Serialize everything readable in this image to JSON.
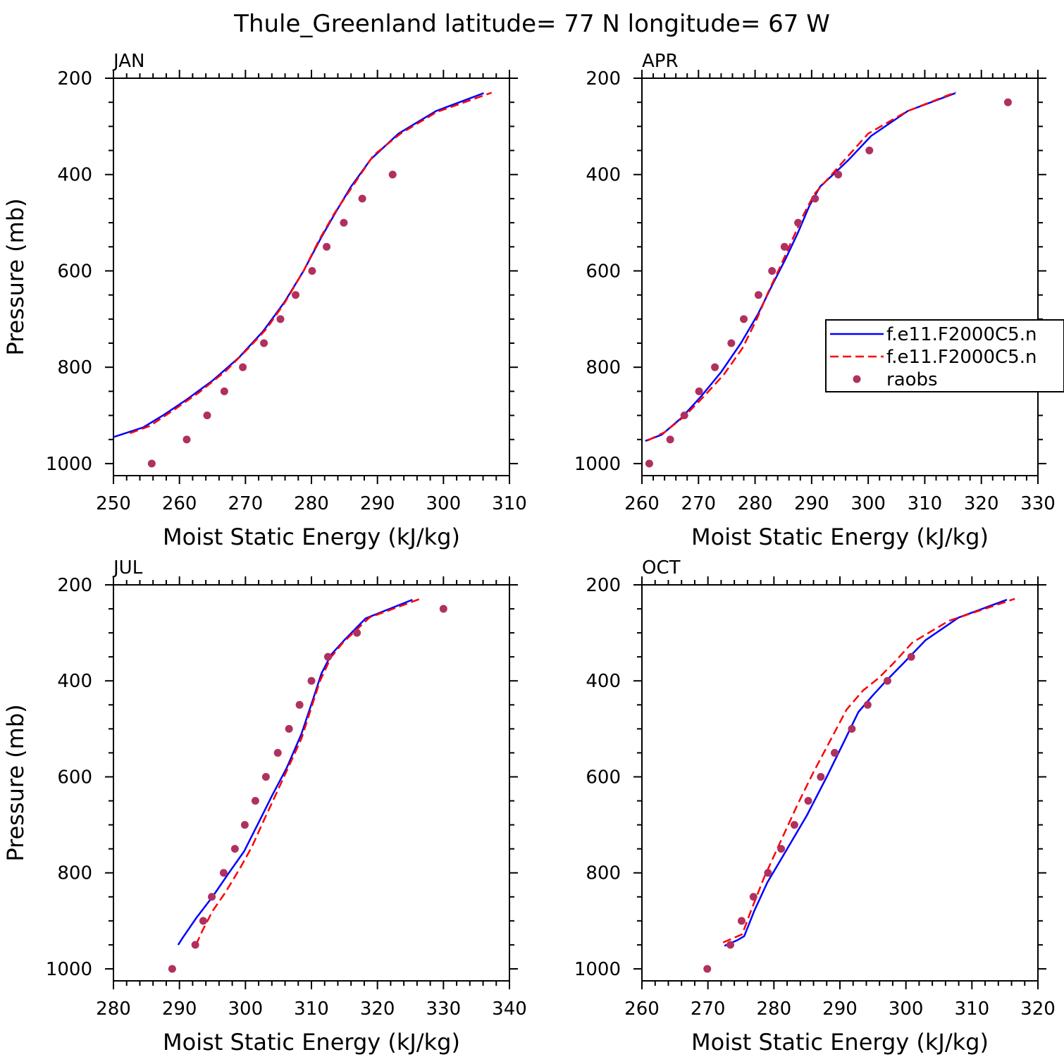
{
  "figure": {
    "title": "Thule_Greenland  latitude= 77 N longitude= 67 W"
  },
  "legend": {
    "panel": 1,
    "entries": [
      {
        "label": "f.e11.F2000C5.n",
        "style": "solid",
        "color": "#0000ff"
      },
      {
        "label": "f.e11.F2000C5.n",
        "style": "dashed",
        "color": "#ff0000"
      },
      {
        "label": "raobs",
        "style": "marker",
        "color": "#b03060"
      }
    ]
  },
  "colors": {
    "model1": "#0000ff",
    "model2": "#ff0000",
    "raobs": "#b03060"
  },
  "chart_data": [
    {
      "type": "line",
      "title": "JAN",
      "xlabel": "Moist Static Energy (kJ/kg)",
      "ylabel": "Pressure (mb)",
      "xlim": [
        250,
        310
      ],
      "ylim": [
        200,
        1025
      ],
      "y_inverted": true,
      "xticks": [
        250,
        260,
        270,
        280,
        290,
        300,
        310
      ],
      "yticks": [
        200,
        400,
        600,
        800,
        1000
      ],
      "series": [
        {
          "name": "f.e11.F2000C5.n",
          "style": "solid",
          "color": "#0000ff",
          "x": [
            250.0,
            254.5,
            257.5,
            261.0,
            265.0,
            269.0,
            272.7,
            275.9,
            278.8,
            281.5,
            283.6,
            286.0,
            289.0,
            293.2,
            298.9,
            306.1
          ],
          "y": [
            945,
            925,
            900,
            868,
            828,
            780,
            725,
            665,
            600,
            530,
            480,
            425,
            368,
            315,
            268,
            231
          ]
        },
        {
          "name": "f.e11.F2000C5.n",
          "style": "dashed",
          "color": "#ff0000",
          "x": [
            252.5,
            255.5,
            259.0,
            263.0,
            267.0,
            270.5,
            273.2,
            276.0,
            278.8,
            281.2,
            283.5,
            286.2,
            289.4,
            293.5,
            299.0,
            307.3
          ],
          "y": [
            937,
            922,
            890,
            852,
            808,
            760,
            720,
            665,
            600,
            535,
            480,
            425,
            360,
            315,
            270,
            230
          ]
        },
        {
          "name": "raobs",
          "style": "marker",
          "color": "#b03060",
          "x": [
            255.8,
            261.1,
            264.2,
            266.8,
            269.6,
            272.8,
            275.3,
            277.6,
            280.1,
            282.3,
            284.9,
            287.7,
            292.3
          ],
          "y": [
            1000,
            950,
            900,
            850,
            800,
            750,
            700,
            650,
            600,
            550,
            500,
            450,
            400
          ]
        }
      ]
    },
    {
      "type": "line",
      "title": "APR",
      "xlabel": "Moist Static Energy (kJ/kg)",
      "ylabel": "",
      "xlim": [
        260,
        330
      ],
      "ylim": [
        200,
        1025
      ],
      "y_inverted": true,
      "xticks": [
        260,
        270,
        280,
        290,
        300,
        310,
        320,
        330
      ],
      "yticks": [
        200,
        400,
        600,
        800,
        1000
      ],
      "series": [
        {
          "name": "f.e11.F2000C5.n",
          "style": "solid",
          "color": "#0000ff",
          "x": [
            260.6,
            263.5,
            267.0,
            270.5,
            274.0,
            277.5,
            280.5,
            283.0,
            285.4,
            287.6,
            289.6,
            291.5,
            293.8,
            296.5,
            300.5,
            307.0,
            315.4
          ],
          "y": [
            953,
            940,
            905,
            860,
            810,
            750,
            690,
            630,
            575,
            520,
            465,
            425,
            400,
            370,
            320,
            268,
            231
          ]
        },
        {
          "name": "f.e11.F2000C5.n",
          "style": "dashed",
          "color": "#ff0000",
          "x": [
            261.0,
            264.0,
            267.5,
            271.0,
            274.5,
            277.8,
            280.3,
            282.3,
            284.3,
            286.4,
            288.5,
            290.5,
            292.8,
            295.8,
            300.0,
            307.0,
            315.5
          ],
          "y": [
            952,
            935,
            902,
            860,
            815,
            760,
            700,
            645,
            595,
            540,
            485,
            440,
            410,
            370,
            315,
            268,
            229
          ]
        },
        {
          "name": "raobs",
          "style": "marker",
          "color": "#b03060",
          "x": [
            261.3,
            265.0,
            267.5,
            270.1,
            272.9,
            275.8,
            278.0,
            280.6,
            283.0,
            285.2,
            287.6,
            290.6,
            294.7,
            300.2,
            324.7
          ],
          "y": [
            1000,
            950,
            900,
            850,
            800,
            750,
            700,
            650,
            600,
            550,
            500,
            450,
            400,
            350,
            250
          ]
        }
      ]
    },
    {
      "type": "line",
      "title": "JUL",
      "xlabel": "Moist Static Energy (kJ/kg)",
      "ylabel": "Pressure (mb)",
      "xlim": [
        280,
        340
      ],
      "ylim": [
        200,
        1025
      ],
      "y_inverted": true,
      "xticks": [
        280,
        290,
        300,
        310,
        320,
        330,
        340
      ],
      "yticks": [
        200,
        400,
        600,
        800,
        1000
      ],
      "series": [
        {
          "name": "f.e11.F2000C5.n",
          "style": "solid",
          "color": "#0000ff",
          "x": [
            289.8,
            290.5,
            292.5,
            295.0,
            297.5,
            299.8,
            302.0,
            304.0,
            306.3,
            308.5,
            310.2,
            311.5,
            313.0,
            315.0,
            318.2,
            325.3
          ],
          "y": [
            950,
            935,
            895,
            850,
            800,
            755,
            695,
            640,
            580,
            510,
            440,
            385,
            345,
            315,
            270,
            231
          ]
        },
        {
          "name": "f.e11.F2000C5.n",
          "style": "dashed",
          "color": "#ff0000",
          "x": [
            292.5,
            293.5,
            295.0,
            297.0,
            299.2,
            301.0,
            302.8,
            304.5,
            306.5,
            308.5,
            310.0,
            311.3,
            313.0,
            314.8,
            318.8,
            326.5
          ],
          "y": [
            950,
            920,
            880,
            840,
            790,
            745,
            690,
            640,
            580,
            520,
            455,
            400,
            350,
            320,
            268,
            229
          ]
        },
        {
          "name": "raobs",
          "style": "marker",
          "color": "#b03060",
          "x": [
            288.9,
            292.4,
            293.6,
            294.9,
            296.7,
            298.4,
            299.9,
            301.5,
            303.1,
            304.9,
            306.6,
            308.2,
            310.0,
            312.5,
            316.9,
            330.0
          ],
          "y": [
            1000,
            950,
            900,
            850,
            800,
            750,
            700,
            650,
            600,
            550,
            500,
            450,
            400,
            350,
            300,
            250
          ]
        }
      ]
    },
    {
      "type": "line",
      "title": "OCT",
      "xlabel": "Moist Static Energy (kJ/kg)",
      "ylabel": "",
      "xlim": [
        260,
        320
      ],
      "ylim": [
        200,
        1025
      ],
      "y_inverted": true,
      "xticks": [
        260,
        270,
        280,
        290,
        300,
        310,
        320
      ],
      "yticks": [
        200,
        400,
        600,
        800,
        1000
      ],
      "series": [
        {
          "name": "f.e11.F2000C5.n",
          "style": "solid",
          "color": "#0000ff",
          "x": [
            272.5,
            274.5,
            275.5,
            277.0,
            279.0,
            282.0,
            285.0,
            288.0,
            290.5,
            292.8,
            295.0,
            297.0,
            299.5,
            303.0,
            308.0,
            315.3
          ],
          "y": [
            952,
            940,
            932,
            880,
            820,
            750,
            680,
            600,
            530,
            465,
            430,
            400,
            365,
            315,
            268,
            231
          ]
        },
        {
          "name": "f.e11.F2000C5.n",
          "style": "dashed",
          "color": "#ff0000",
          "x": [
            272.3,
            274.0,
            275.2,
            276.5,
            278.5,
            281.0,
            283.5,
            286.0,
            288.5,
            291.0,
            293.5,
            295.8,
            298.0,
            301.0,
            306.5,
            316.5
          ],
          "y": [
            945,
            935,
            928,
            880,
            810,
            735,
            660,
            590,
            525,
            460,
            420,
            395,
            365,
            320,
            275,
            229
          ]
        },
        {
          "name": "raobs",
          "style": "marker",
          "color": "#b03060",
          "x": [
            269.9,
            273.4,
            275.1,
            276.9,
            279.1,
            281.1,
            283.1,
            285.2,
            287.1,
            289.2,
            291.8,
            294.2,
            297.2,
            300.8
          ],
          "y": [
            1000,
            950,
            900,
            850,
            800,
            750,
            700,
            650,
            600,
            550,
            500,
            450,
            400,
            350
          ]
        }
      ]
    }
  ]
}
